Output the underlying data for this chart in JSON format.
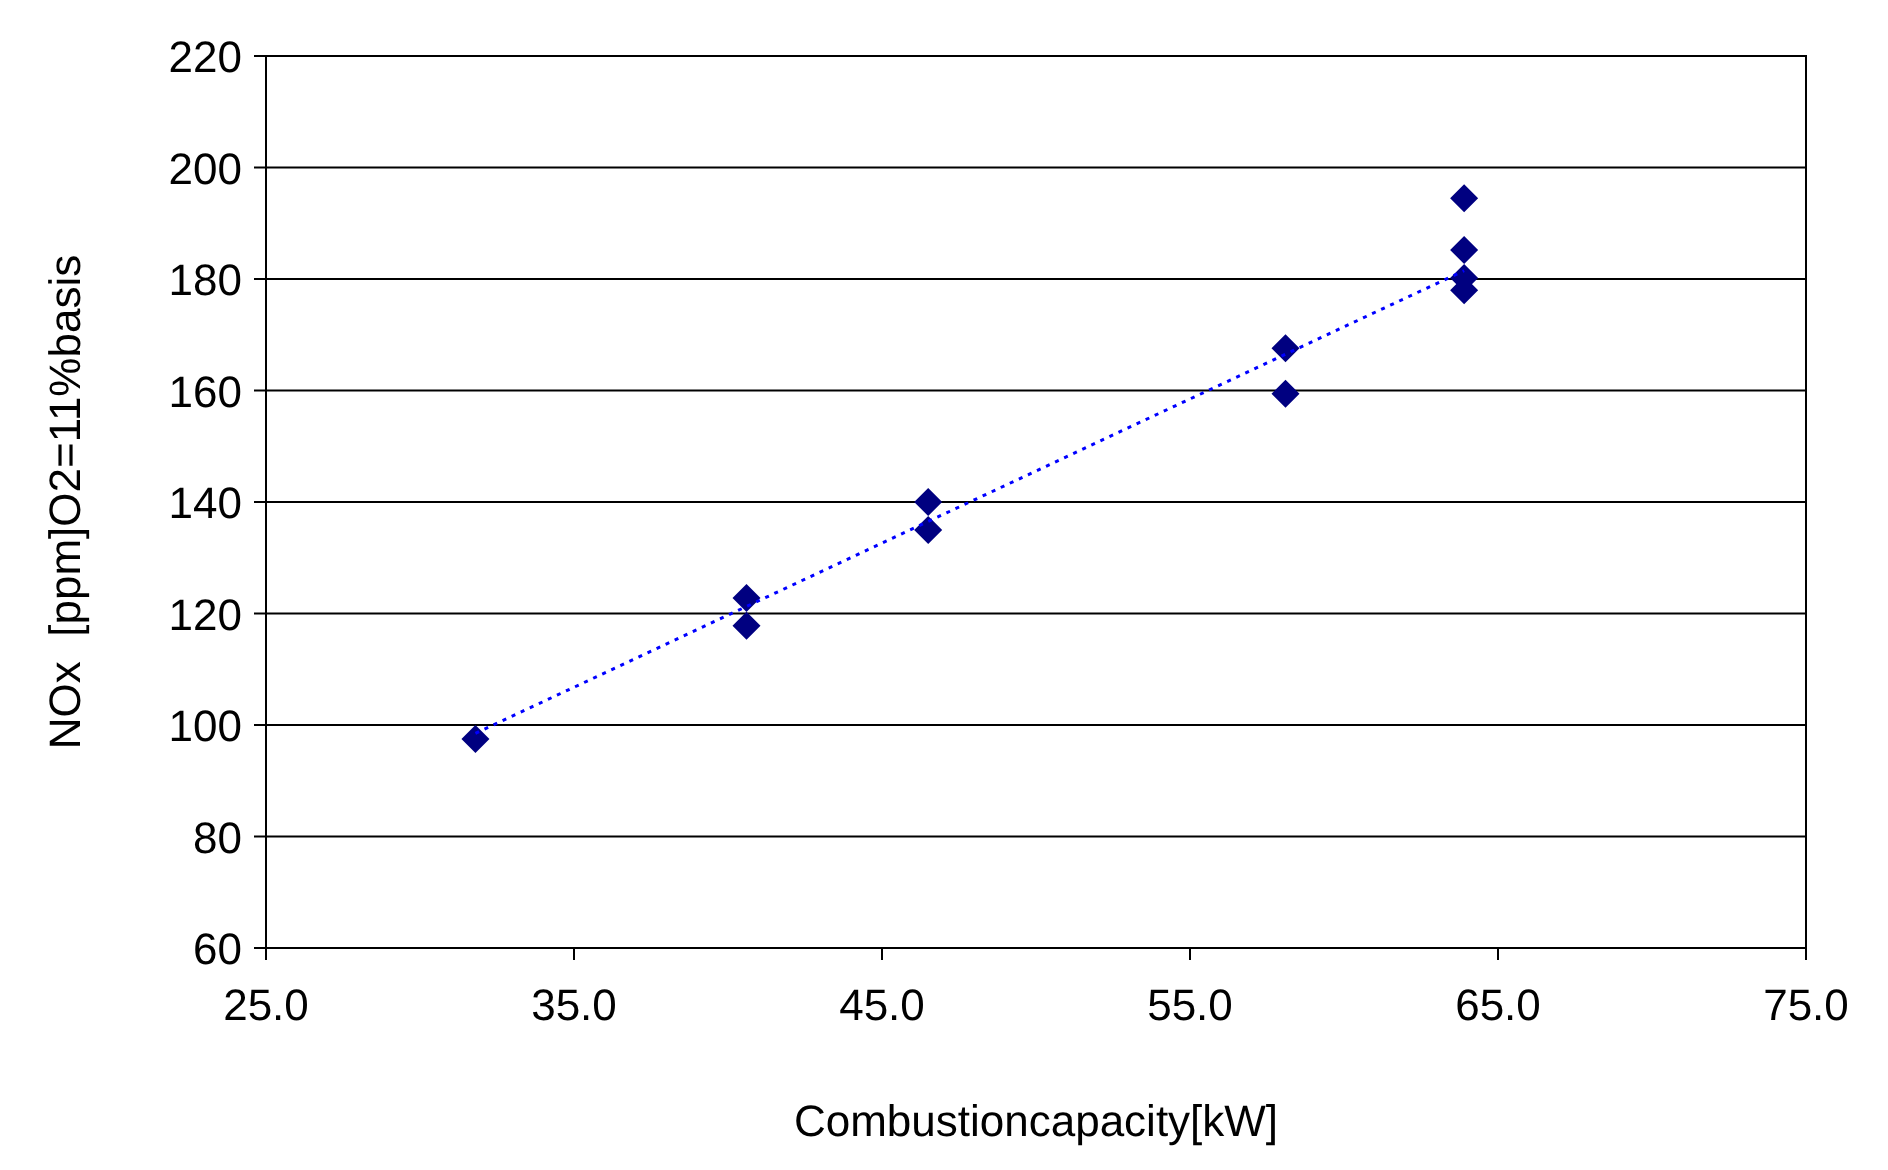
{
  "chart_data": {
    "type": "scatter",
    "xlabel": "Combustioncapacity[kW]",
    "ylabel": "NOx  [ppm]O2=11%basis",
    "xlim": [
      25,
      75
    ],
    "xticks": [
      {
        "value": 25,
        "label": "25.0"
      },
      {
        "value": 35,
        "label": "35.0"
      },
      {
        "value": 45,
        "label": "45.0"
      },
      {
        "value": 55,
        "label": "55.0"
      },
      {
        "value": 65,
        "label": "65.0"
      },
      {
        "value": 75,
        "label": "75.0"
      }
    ],
    "ylim": [
      60,
      220
    ],
    "yticks": [
      60,
      80,
      100,
      120,
      140,
      160,
      180,
      200,
      220
    ],
    "grid": "y",
    "series": [
      {
        "color": "#000080",
        "marker": "diamond",
        "x": [
          31.8,
          40.6,
          40.6,
          46.5,
          46.5,
          58.1,
          58.1,
          63.9,
          63.9,
          63.9,
          63.9
        ],
        "values": [
          97.5,
          122.8,
          117.8,
          140,
          135,
          167.6,
          159.4,
          194.5,
          185.2,
          180.2,
          178
        ]
      },
      {
        "type": "line",
        "color": "#0000ff",
        "line_style": "dotted",
        "marker": "none",
        "x": [
          31.8,
          63.9
        ],
        "values": [
          98.5,
          181.5
        ]
      }
    ]
  }
}
